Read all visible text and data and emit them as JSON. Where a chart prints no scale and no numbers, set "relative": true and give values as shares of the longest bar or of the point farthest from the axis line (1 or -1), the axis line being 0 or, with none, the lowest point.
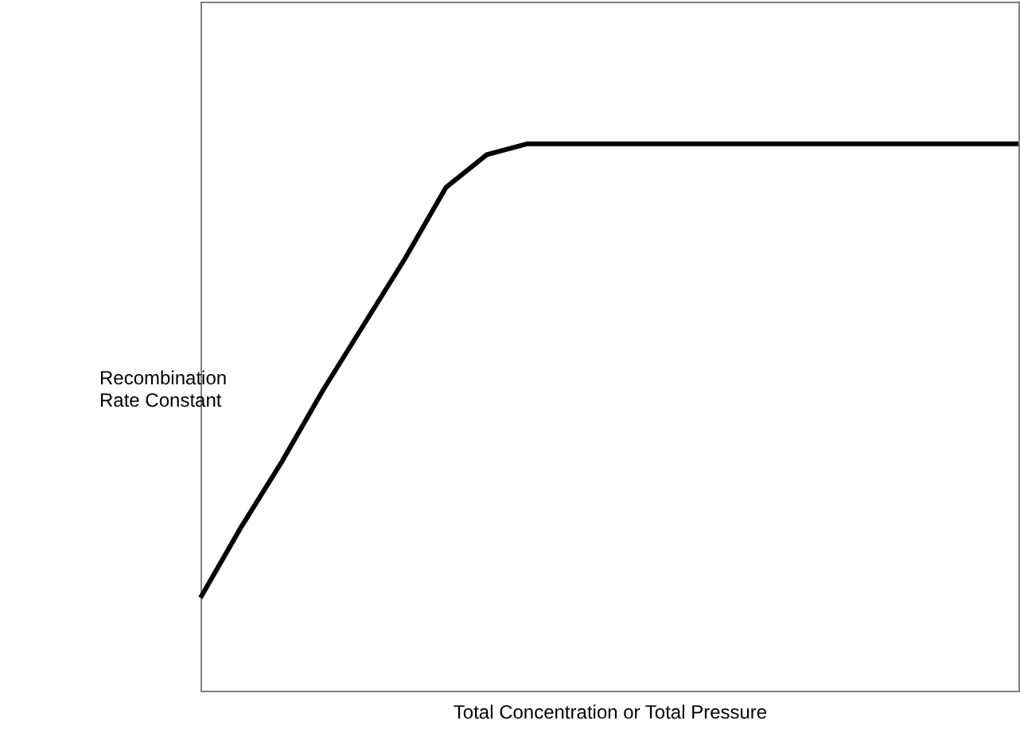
{
  "chart_data": {
    "type": "line",
    "relative": true,
    "xlabel": "Total Concentration or Total Pressure",
    "ylabel": "Recombination Rate Constant",
    "categories": [
      null,
      null,
      null,
      null,
      null,
      null,
      null,
      null,
      null,
      null,
      null,
      null,
      null,
      null,
      null,
      null,
      null,
      null,
      null,
      null,
      null
    ],
    "series": [
      {
        "color": "#000000",
        "values": [
          0.17,
          0.3,
          0.42,
          0.55,
          0.67,
          0.79,
          0.92,
          0.98,
          1,
          1,
          1,
          1,
          1,
          1,
          1,
          1,
          1,
          1,
          1,
          1,
          1
        ]
      }
    ],
    "grid": false,
    "marker": "none",
    "line_style": "solid"
  }
}
